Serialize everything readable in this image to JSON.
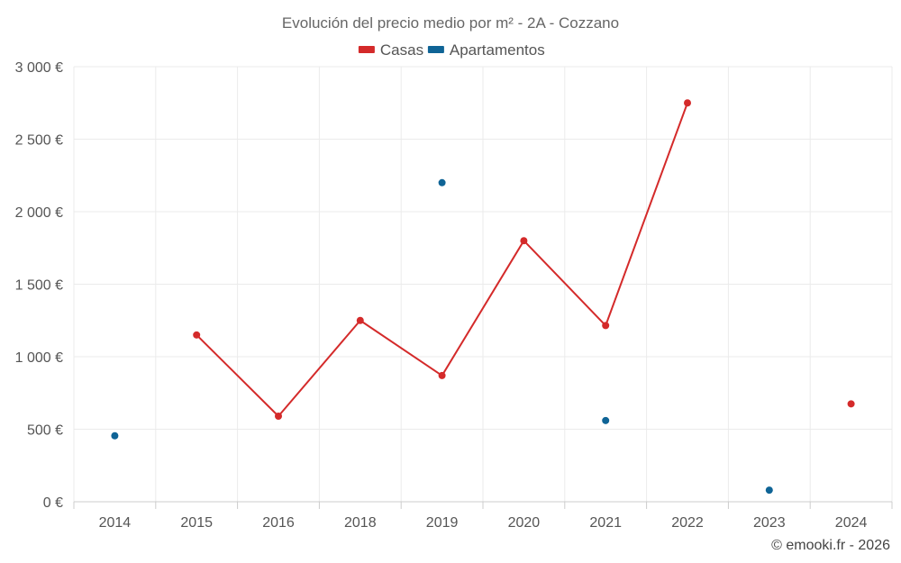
{
  "chart_data": {
    "type": "line",
    "title": "Evolución del precio medio por m² - 2A - Cozzano",
    "categories": [
      "2014",
      "2015",
      "2016",
      "2018",
      "2019",
      "2020",
      "2021",
      "2022",
      "2023",
      "2024"
    ],
    "series": [
      {
        "name": "Casas",
        "color": "#d42a2a",
        "values": [
          null,
          1150,
          590,
          1250,
          870,
          1800,
          1215,
          2750,
          null,
          675
        ]
      },
      {
        "name": "Apartamentos",
        "color": "#0f6496",
        "values": [
          455,
          null,
          null,
          null,
          2200,
          null,
          560,
          null,
          80,
          null
        ]
      }
    ],
    "y_ticks": [
      {
        "value": 0,
        "label": "0 €"
      },
      {
        "value": 500,
        "label": "500 €"
      },
      {
        "value": 1000,
        "label": "1 000 €"
      },
      {
        "value": 1500,
        "label": "1 500 €"
      },
      {
        "value": 2000,
        "label": "2 000 €"
      },
      {
        "value": 2500,
        "label": "2 500 €"
      },
      {
        "value": 3000,
        "label": "3 000 €"
      }
    ],
    "ylim": [
      0,
      3000
    ],
    "grid": true,
    "legend_position": "top-center",
    "credit": "© emooki.fr - 2026"
  }
}
